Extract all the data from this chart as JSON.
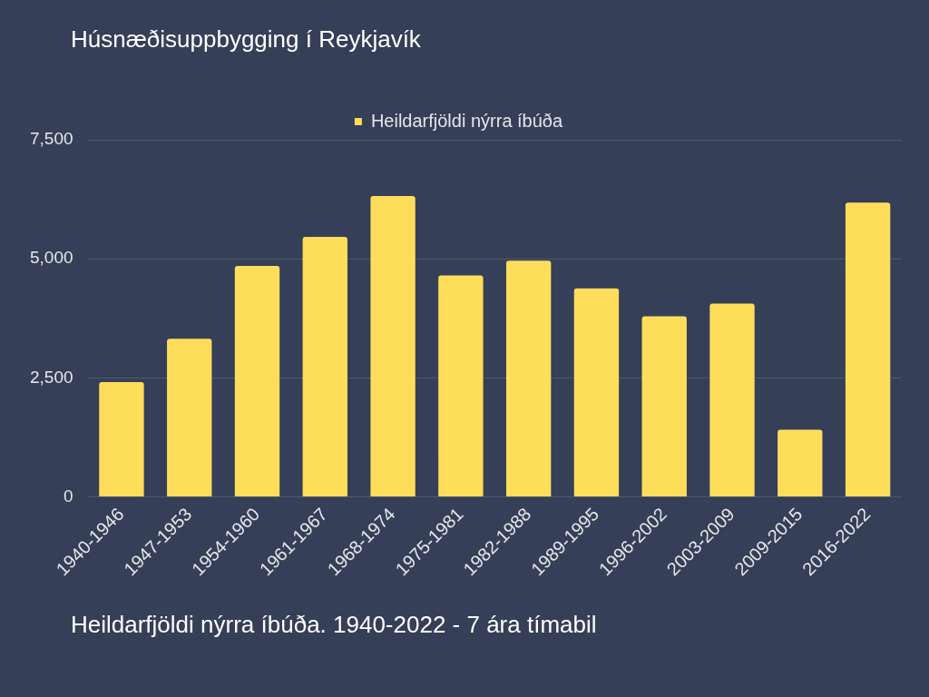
{
  "chart_data": {
    "type": "bar",
    "title": "Húsnæðisuppbygging í Reykjavík",
    "categories": [
      "1940-1946",
      "1947-1953",
      "1954-1960",
      "1961-1967",
      "1968-1974",
      "1975-1981",
      "1982-1988",
      "1989-1995",
      "1996-2002",
      "2003-2009",
      "2009-2015",
      "2016-2022"
    ],
    "series": [
      {
        "name": "Heildarfjöldi nýrra íbúða",
        "color": "#fedd5b",
        "values": [
          2410,
          3320,
          4850,
          5460,
          6320,
          4650,
          4960,
          4380,
          3790,
          4060,
          1410,
          6180
        ]
      }
    ],
    "ylim": [
      0,
      7500
    ],
    "yticks": [
      0,
      {
        "value": 2500,
        "label": "2,500"
      },
      {
        "value": 5000,
        "label": "5,000"
      },
      {
        "value": 7500,
        "label": "7,500"
      }
    ],
    "grid": "y",
    "legend": "top",
    "annotations": [
      "Heildarfjöldi nýrra íbúða. 1940-2022 - 7 ára tímabil"
    ]
  }
}
